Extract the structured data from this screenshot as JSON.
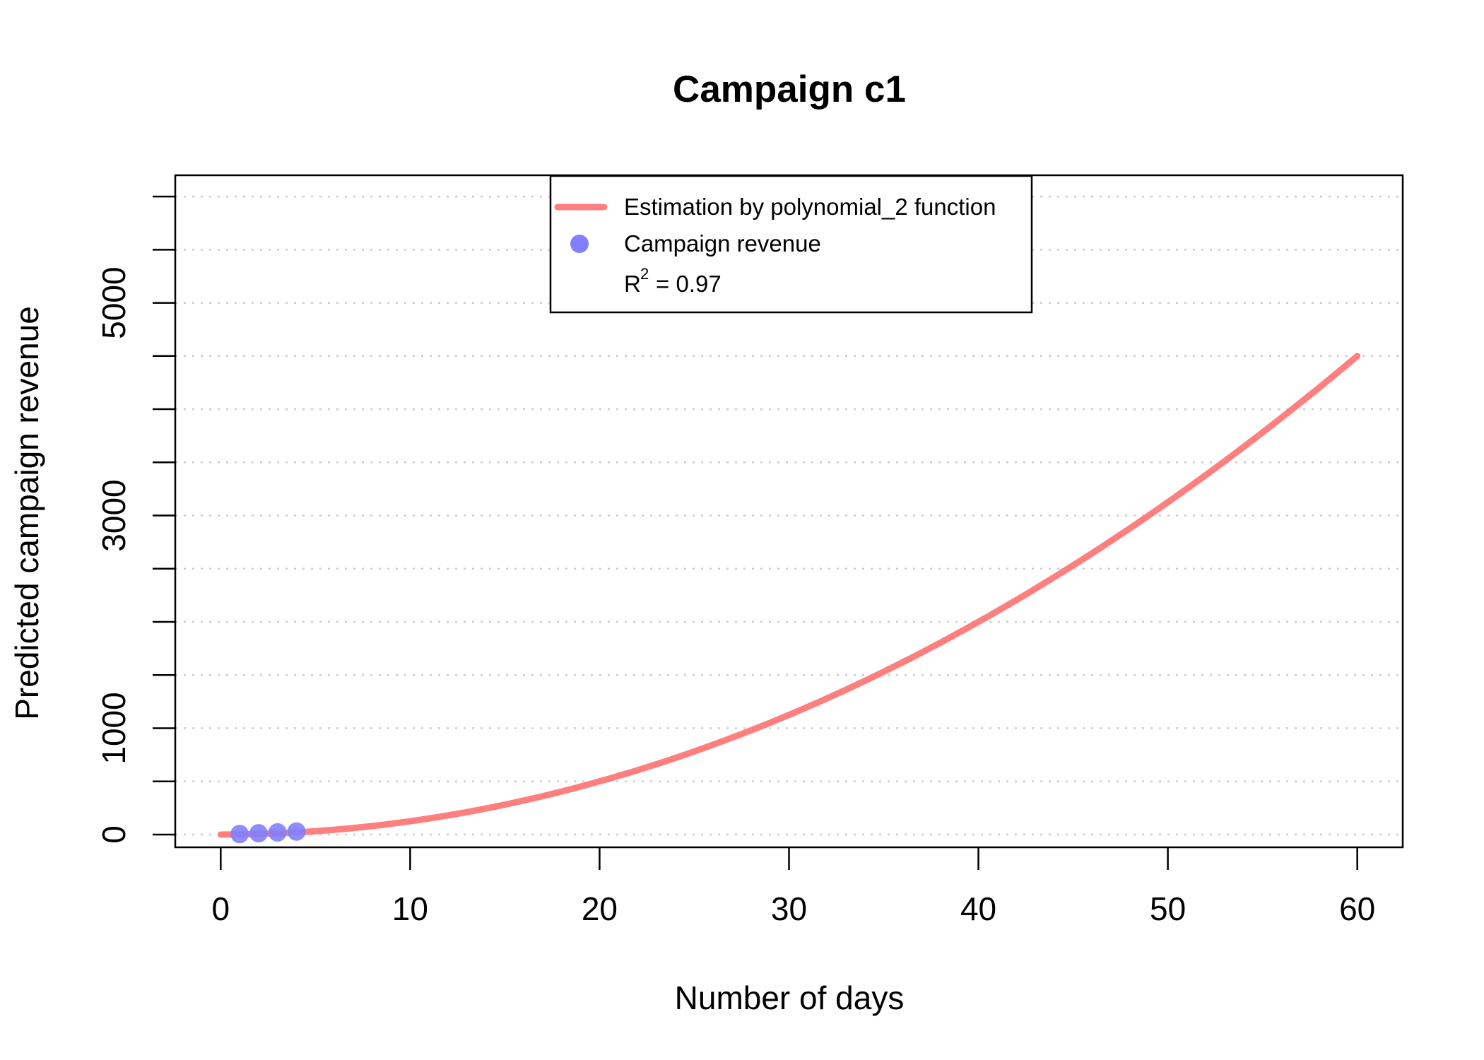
{
  "chart_data": {
    "type": "line",
    "title": "Campaign c1",
    "xlabel": "Number of days",
    "ylabel": "Predicted campaign revenue",
    "xlim": [
      -2.4,
      62.4
    ],
    "ylim": [
      -120,
      6200
    ],
    "x_ticks": [
      0,
      10,
      20,
      30,
      40,
      50,
      60
    ],
    "x_tick_labels": [
      "0",
      "10",
      "20",
      "30",
      "40",
      "50",
      "60"
    ],
    "y_ticks": [
      0,
      500,
      1000,
      1500,
      2000,
      2500,
      3000,
      3500,
      4000,
      4500,
      5000,
      5500,
      6000
    ],
    "y_tick_labels": [
      "0",
      "",
      "1000",
      "",
      "",
      "",
      "3000",
      "",
      "",
      "",
      "5000",
      "",
      ""
    ],
    "y_gridlines": [
      0,
      500,
      1000,
      1500,
      2000,
      2500,
      3000,
      3500,
      4000,
      4500,
      5000,
      5500,
      6000
    ],
    "grid": "horizontal dotted",
    "series": [
      {
        "name": "Estimation by polynomial_2 function",
        "kind": "line",
        "color": "#ff7f7f",
        "x": [
          0,
          5,
          10,
          15,
          20,
          25,
          30,
          35,
          40,
          45,
          50,
          55,
          60
        ],
        "y": [
          0,
          31,
          125,
          281,
          500,
          781,
          1125,
          1531,
          2000,
          2531,
          3125,
          3781,
          4500
        ]
      },
      {
        "name": "Campaign revenue",
        "kind": "points",
        "color": "#7f7fff",
        "x": [
          1,
          2,
          3,
          4
        ],
        "y": [
          5,
          12,
          20,
          28
        ]
      }
    ],
    "legend": {
      "position": "top",
      "entries": [
        {
          "label": "Estimation by polynomial_2 function",
          "symbol": "line",
          "color": "#ff7f7f"
        },
        {
          "label": "Campaign revenue",
          "symbol": "point",
          "color": "#7f7fff"
        },
        {
          "label_base": "R",
          "label_sup": "2",
          "label_rest": "= 0.97",
          "symbol": "none"
        }
      ]
    }
  }
}
